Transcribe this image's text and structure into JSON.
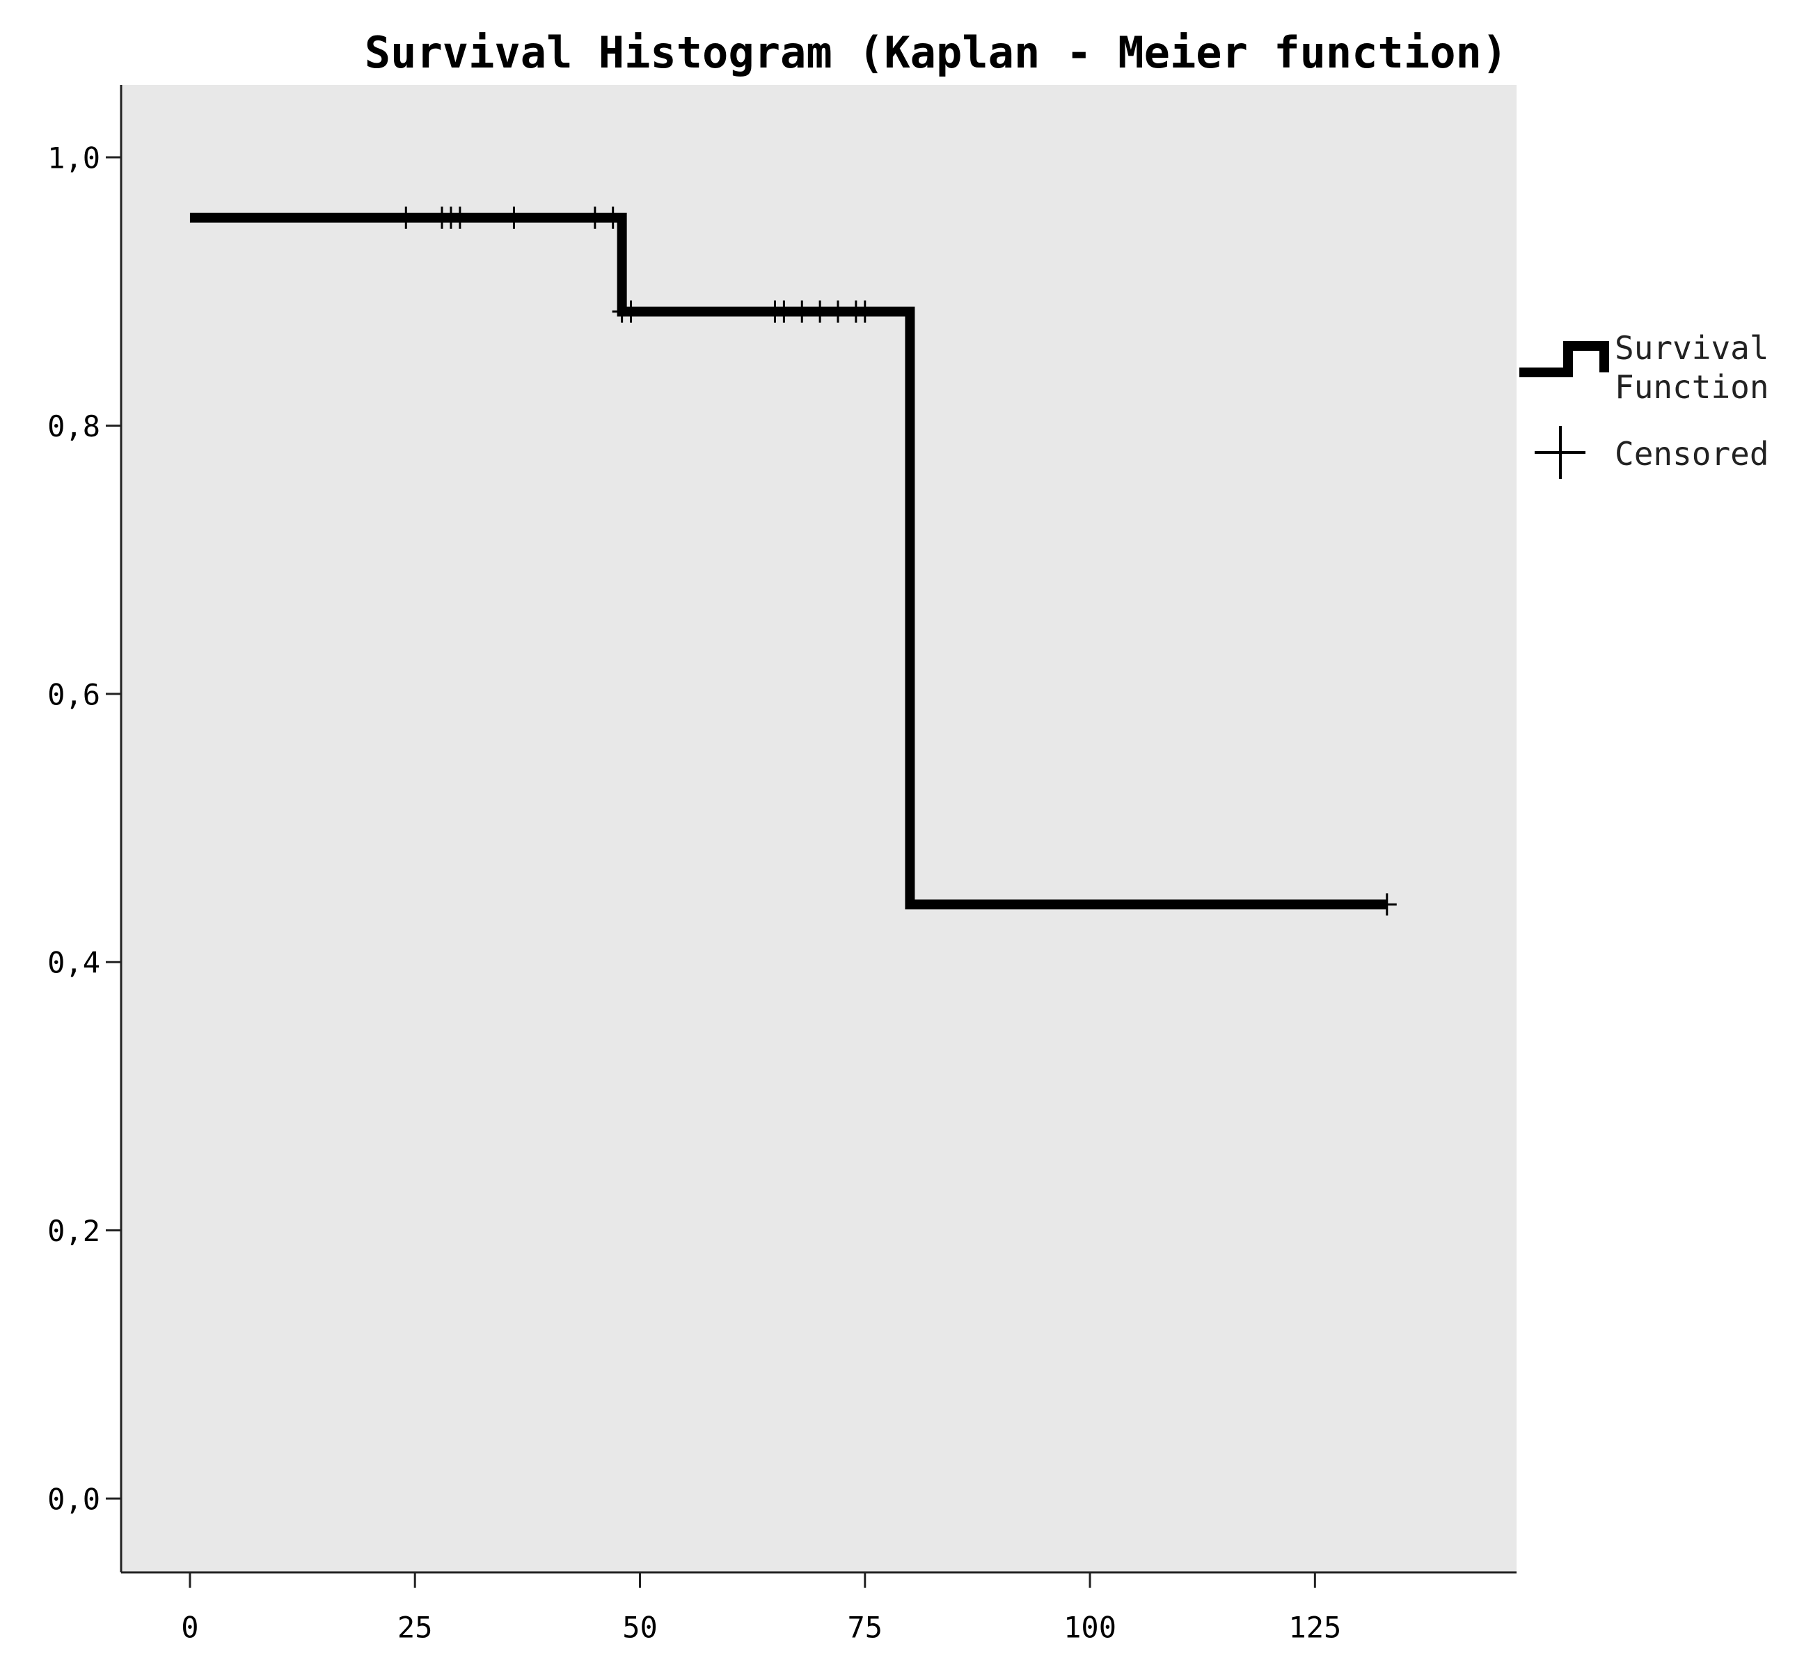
{
  "chart_data": {
    "type": "line",
    "step": "post",
    "title": "Survival Histogram (Kaplan - Meier function)",
    "series": [
      {
        "name": "Survival Function",
        "color": "#000000",
        "x": [
          0,
          48,
          80,
          133
        ],
        "values": [
          0.955,
          0.885,
          0.443,
          0.443
        ]
      },
      {
        "name": "Censored",
        "color": "#000000",
        "marker": "+",
        "x": [
          24,
          28,
          29,
          30,
          36,
          45,
          47,
          48,
          49,
          65,
          66,
          68,
          70,
          72,
          74,
          75,
          133
        ],
        "values": [
          0.955,
          0.955,
          0.955,
          0.955,
          0.955,
          0.955,
          0.955,
          0.885,
          0.885,
          0.885,
          0.885,
          0.885,
          0.885,
          0.885,
          0.885,
          0.885,
          0.443
        ]
      }
    ],
    "xlim": [
      -7.65,
      147.4
    ],
    "xticks": [
      0,
      25,
      50,
      75,
      100,
      125
    ],
    "ylim": [
      -0.055,
      1.054
    ],
    "yticks": [
      {
        "value": 0,
        "label": "0,0"
      },
      {
        "value": 0.2,
        "label": "0,2"
      },
      {
        "value": 0.4,
        "label": "0,4"
      },
      {
        "value": 0.6,
        "label": "0,6"
      },
      {
        "value": 0.8,
        "label": "0,8"
      },
      {
        "value": 1,
        "label": "1,0"
      }
    ],
    "background": "#e8e8e8",
    "legend": "right"
  }
}
